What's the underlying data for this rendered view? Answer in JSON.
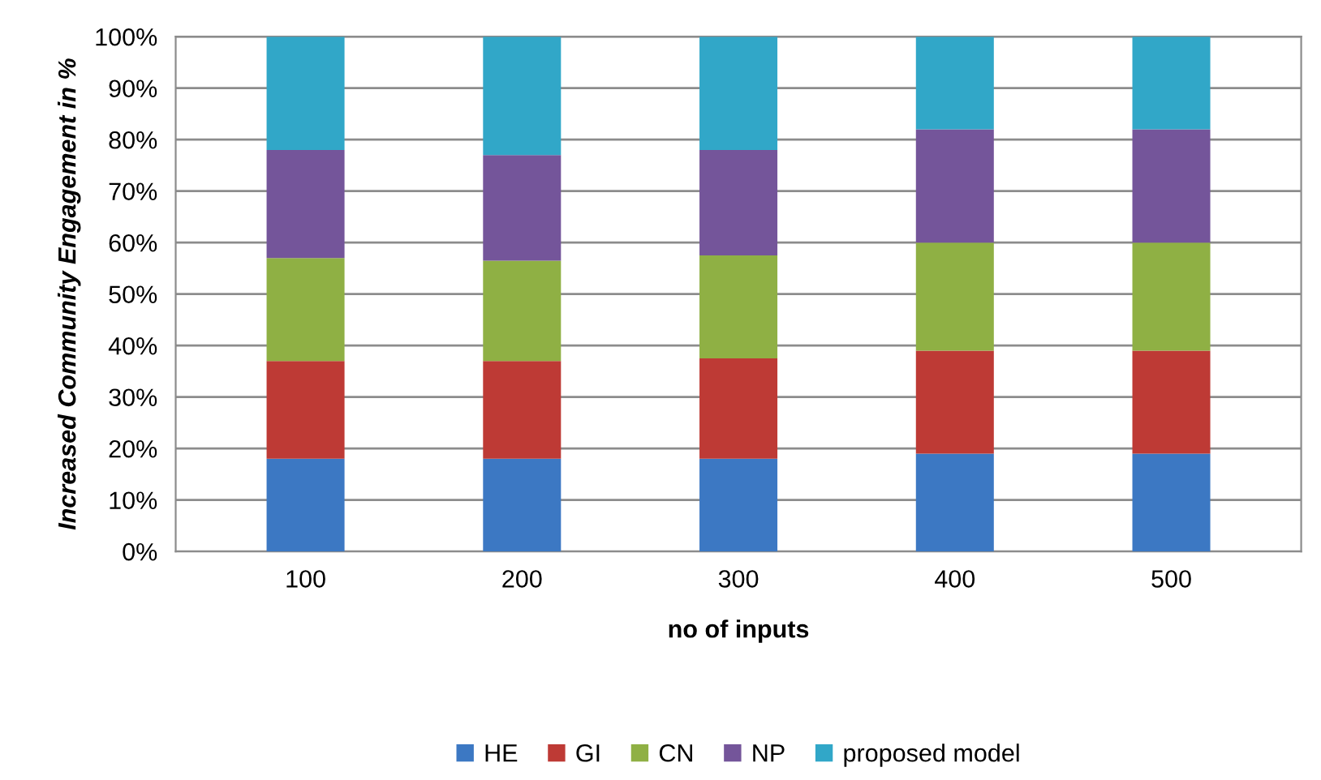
{
  "chart_data": {
    "type": "bar",
    "stacked": true,
    "xlabel": "no of inputs",
    "ylabel": "Increased Community Engagement in %",
    "categories": [
      "100",
      "200",
      "300",
      "400",
      "500"
    ],
    "series": [
      {
        "name": "HE",
        "color": "#3c78c3",
        "values": [
          18,
          18,
          18,
          19,
          19
        ]
      },
      {
        "name": "GI",
        "color": "#be3a35",
        "values": [
          19,
          19,
          19.5,
          20,
          20
        ]
      },
      {
        "name": "CN",
        "color": "#8fb044",
        "values": [
          20,
          19.5,
          20,
          21,
          21
        ]
      },
      {
        "name": "NP",
        "color": "#74559a",
        "values": [
          21,
          20.5,
          20.5,
          22,
          22
        ]
      },
      {
        "name": "proposed model",
        "color": "#31a7c8",
        "values": [
          22,
          23,
          22,
          18,
          18
        ]
      }
    ],
    "ylim": [
      0,
      100
    ],
    "yticks": [
      {
        "value": 0,
        "label": "0%"
      },
      {
        "value": 10,
        "label": "10%"
      },
      {
        "value": 20,
        "label": "20%"
      },
      {
        "value": 30,
        "label": "30%"
      },
      {
        "value": 40,
        "label": "40%"
      },
      {
        "value": 50,
        "label": "50%"
      },
      {
        "value": 60,
        "label": "60%"
      },
      {
        "value": 70,
        "label": "70%"
      },
      {
        "value": 80,
        "label": "80%"
      },
      {
        "value": 90,
        "label": "90%"
      },
      {
        "value": 100,
        "label": "100%"
      }
    ],
    "grid": "y",
    "legend": "bottom"
  }
}
